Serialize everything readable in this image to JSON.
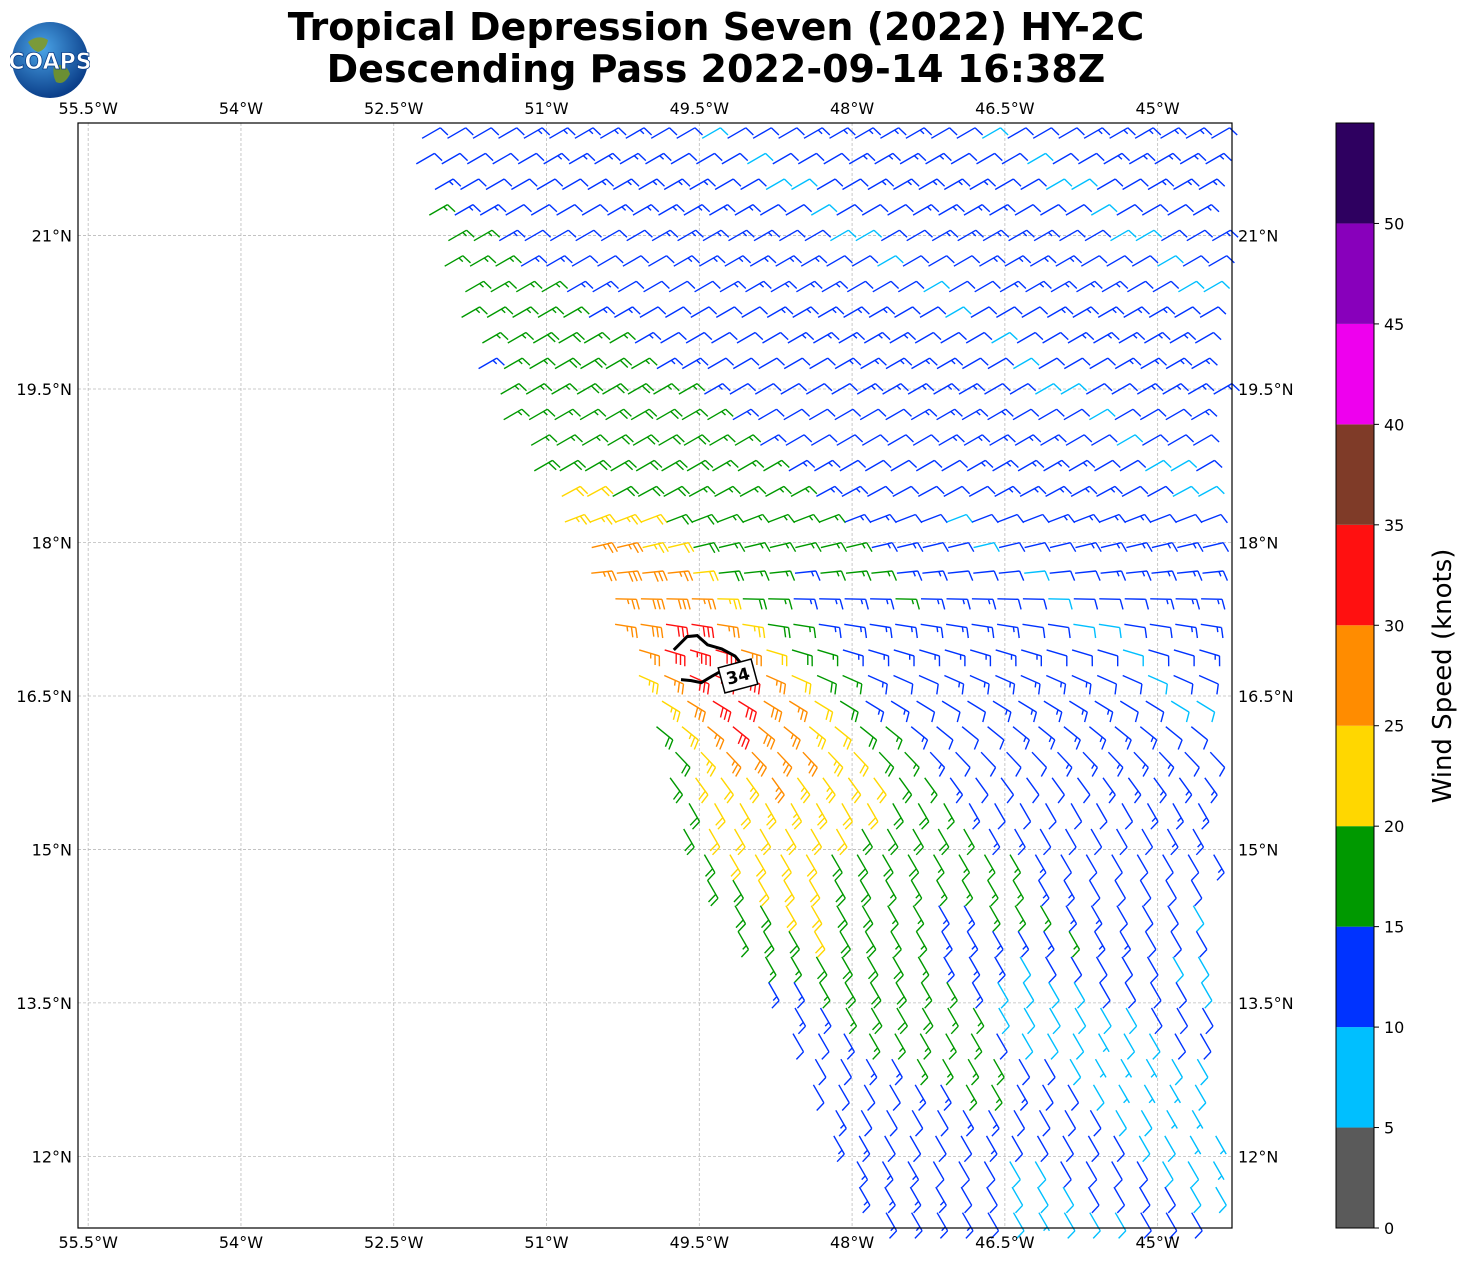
{
  "logo_text": "COAPS",
  "chart_data": {
    "type": "wind_barb_map",
    "title": "Tropical Depression Seven (2022) HY-2C",
    "subtitle": "Descending Pass 2022-09-14 16:38Z",
    "xlim": [
      -55.6,
      -44.27
    ],
    "ylim": [
      11.3,
      22.1
    ],
    "x_ticks": [
      -55.5,
      -54,
      -52.5,
      -51,
      -49.5,
      -48,
      -46.5,
      -45
    ],
    "x_tick_labels": [
      "55.5°W",
      "54°W",
      "52.5°W",
      "51°W",
      "49.5°W",
      "48°W",
      "46.5°W",
      "45°W"
    ],
    "y_ticks": [
      12,
      13.5,
      15,
      16.5,
      18,
      19.5,
      21
    ],
    "y_tick_labels": [
      "12°N",
      "13.5°N",
      "15°N",
      "16.5°N",
      "18°N",
      "19.5°N",
      "21°N"
    ],
    "grid": true,
    "contour_label": "34",
    "colorbar": {
      "label": "Wind Speed (knots)",
      "bounds": [
        0,
        5,
        10,
        15,
        20,
        25,
        30,
        35,
        40,
        45,
        50,
        55
      ],
      "tick_labels": [
        "0",
        "5",
        "10",
        "15",
        "20",
        "25",
        "30",
        "35",
        "40",
        "45",
        "50"
      ],
      "colors": [
        "#5a5a5a",
        "#00bfff",
        "#0033ff",
        "#009900",
        "#ffd700",
        "#ff8c00",
        "#ff1010",
        "#7f3b28",
        "#ee00ee",
        "#8800bb",
        "#2e0060"
      ]
    },
    "swath_edges": {
      "west_lat": [
        22.1,
        21.0,
        19.5,
        18.0,
        16.5,
        15.0,
        13.5,
        12.0,
        11.3
      ],
      "west_lon": [
        -52.38,
        -52.1,
        -51.6,
        -50.7,
        -50.0,
        -49.6,
        -48.7,
        -48.1,
        -47.7
      ],
      "east_lat": [
        22.1,
        11.3
      ],
      "east_lon": [
        -44.27,
        -44.27
      ]
    },
    "wind_field": {
      "center_lat": 16.7,
      "center_lon": -49.45,
      "core_speed_kt": 33,
      "background_speed_kt": 12,
      "north_sector_direction_deg": 60,
      "south_sector_direction_deg": 150
    }
  }
}
